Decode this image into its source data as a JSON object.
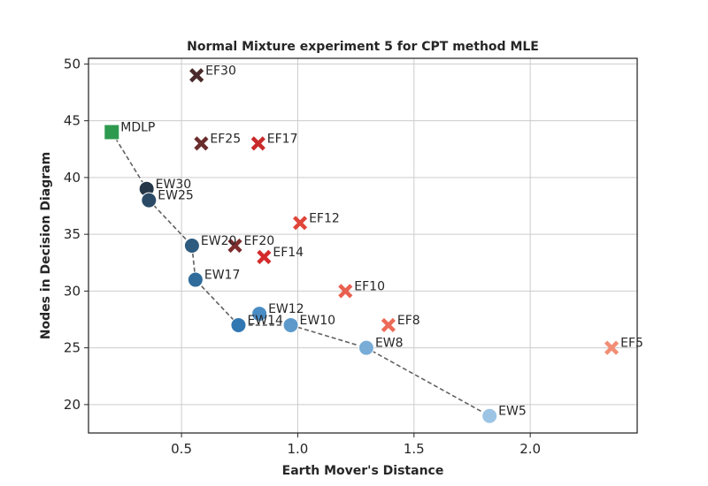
{
  "chart_data": {
    "type": "scatter",
    "title": "Normal Mixture experiment 5 for CPT method MLE",
    "xlabel": "Earth Mover's Distance",
    "ylabel": "Nodes in Decision Diagram",
    "xlim": [
      0.1,
      2.46
    ],
    "ylim": [
      17.5,
      50.5
    ],
    "xticks": [
      0.5,
      1.0,
      1.5,
      2.0
    ],
    "xtick_labels": [
      "0.5",
      "1.0",
      "1.5",
      "2.0"
    ],
    "yticks": [
      20,
      25,
      30,
      35,
      40,
      45,
      50
    ],
    "ytick_labels": [
      "20",
      "25",
      "30",
      "35",
      "40",
      "45",
      "50"
    ],
    "grid": true,
    "series": [
      {
        "marker": "square",
        "points": [
          {
            "label": "MDLP",
            "x": 0.2,
            "y": 44,
            "color": "#2e9a4f"
          }
        ]
      },
      {
        "marker": "circle",
        "points": [
          {
            "label": "EW30",
            "x": 0.35,
            "y": 39,
            "color": "#243647"
          },
          {
            "label": "EW25",
            "x": 0.36,
            "y": 38,
            "color": "#2a4a66"
          },
          {
            "label": "EW20",
            "x": 0.545,
            "y": 34,
            "color": "#2d5c80"
          },
          {
            "label": "EW17",
            "x": 0.56,
            "y": 31,
            "color": "#2f6c9c"
          },
          {
            "label": "EW14",
            "x": 0.745,
            "y": 27,
            "color": "#3178b3"
          },
          {
            "label": "EW12",
            "x": 0.835,
            "y": 28,
            "color": "#4a8cc4"
          },
          {
            "label": "EW10",
            "x": 0.97,
            "y": 27,
            "color": "#5d9acb"
          },
          {
            "label": "EW8",
            "x": 1.295,
            "y": 25,
            "color": "#79acd6"
          },
          {
            "label": "EW5",
            "x": 1.825,
            "y": 19,
            "color": "#9cc4e4"
          }
        ]
      },
      {
        "marker": "x",
        "points": [
          {
            "label": "EF30",
            "x": 0.565,
            "y": 49,
            "color": "#4a2a2a"
          },
          {
            "label": "EF25",
            "x": 0.585,
            "y": 43,
            "color": "#6b2c2c"
          },
          {
            "label": "EF20",
            "x": 0.73,
            "y": 34,
            "color": "#7d2d2d"
          },
          {
            "label": "EF17",
            "x": 0.83,
            "y": 43,
            "color": "#c92a2a"
          },
          {
            "label": "EF14",
            "x": 0.855,
            "y": 33,
            "color": "#d42b2b"
          },
          {
            "label": "EF12",
            "x": 1.01,
            "y": 36,
            "color": "#e0453a"
          },
          {
            "label": "EF10",
            "x": 1.205,
            "y": 30,
            "color": "#e8604f"
          },
          {
            "label": "EF8",
            "x": 1.39,
            "y": 27,
            "color": "#ec6a57"
          },
          {
            "label": "EF5",
            "x": 2.35,
            "y": 25,
            "color": "#f28e76"
          }
        ]
      }
    ],
    "frontier": [
      {
        "x": 0.2,
        "y": 44
      },
      {
        "x": 0.35,
        "y": 39
      },
      {
        "x": 0.36,
        "y": 38
      },
      {
        "x": 0.545,
        "y": 34
      },
      {
        "x": 0.56,
        "y": 31
      },
      {
        "x": 0.745,
        "y": 27
      },
      {
        "x": 0.97,
        "y": 27
      },
      {
        "x": 1.295,
        "y": 25
      },
      {
        "x": 1.825,
        "y": 19
      }
    ],
    "frontier_color": "#606060"
  }
}
